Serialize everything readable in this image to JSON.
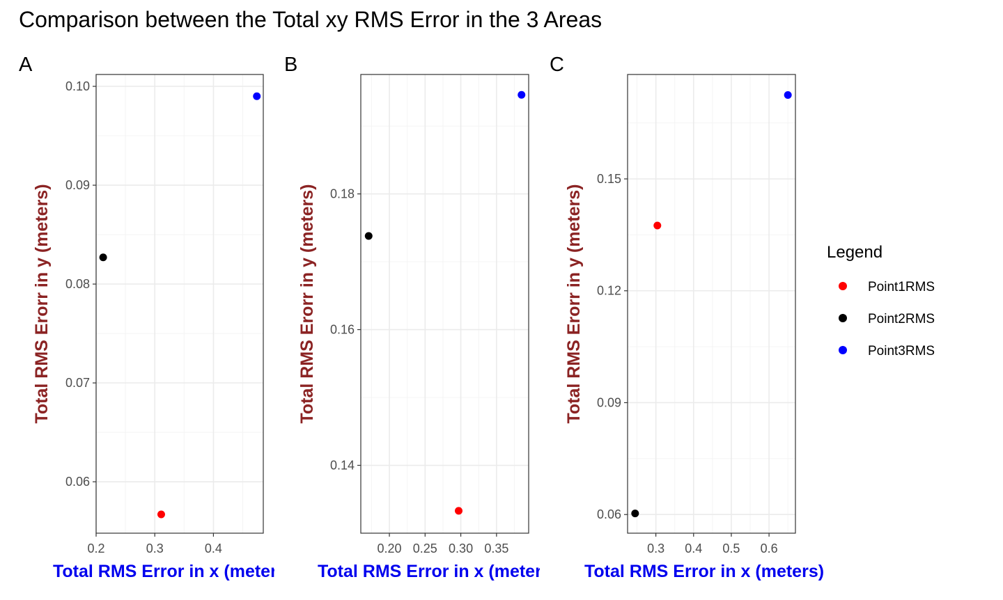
{
  "title": "Comparison between the Total xy RMS Error in the 3 Areas",
  "colors": {
    "xlabel": "#0000ee",
    "ylabel": "#8b2323",
    "grid_major": "#ebebeb",
    "grid_minor": "#f4f4f4",
    "frame": "#333333"
  },
  "legend": {
    "title": "Legend",
    "placement": "right",
    "items": [
      {
        "label": "Point1RMS",
        "color": "#ff0000"
      },
      {
        "label": "Point2RMS",
        "color": "#000000"
      },
      {
        "label": "Point3RMS",
        "color": "#0000ff"
      }
    ]
  },
  "chart_data": [
    {
      "type": "scatter",
      "tag": "A",
      "xlabel": "Total RMS Error in x (meters)",
      "ylabel": "Total RMS Erorr in y (meters)",
      "xlim": [
        0.2,
        0.485
      ],
      "ylim": [
        0.0548,
        0.1012
      ],
      "xticks": [
        0.2,
        0.3,
        0.4
      ],
      "xtick_labels": [
        "0.2",
        "0.3",
        "0.4"
      ],
      "yticks": [
        0.06,
        0.07,
        0.08,
        0.09,
        0.1
      ],
      "ytick_labels": [
        "0.06",
        "0.07",
        "0.08",
        "0.09",
        "0.10"
      ],
      "grid": true,
      "points": [
        {
          "series": "Point1RMS",
          "x": 0.311,
          "y": 0.0567
        },
        {
          "series": "Point2RMS",
          "x": 0.212,
          "y": 0.0827
        },
        {
          "series": "Point3RMS",
          "x": 0.474,
          "y": 0.099
        }
      ]
    },
    {
      "type": "scatter",
      "tag": "B",
      "xlabel": "Total RMS Error in x (meters)",
      "ylabel": "Total RMS Erorr in y (meters)",
      "xlim": [
        0.16,
        0.395
      ],
      "ylim": [
        0.13,
        0.1976
      ],
      "xticks": [
        0.2,
        0.25,
        0.3,
        0.35
      ],
      "xtick_labels": [
        "0.20",
        "0.25",
        "0.30",
        "0.35"
      ],
      "yticks": [
        0.14,
        0.16,
        0.18
      ],
      "ytick_labels": [
        "0.14",
        "0.16",
        "0.18"
      ],
      "grid": true,
      "points": [
        {
          "series": "Point1RMS",
          "x": 0.297,
          "y": 0.1333
        },
        {
          "series": "Point2RMS",
          "x": 0.171,
          "y": 0.1738
        },
        {
          "series": "Point3RMS",
          "x": 0.385,
          "y": 0.1946
        }
      ]
    },
    {
      "type": "scatter",
      "tag": "C",
      "xlabel": "Total RMS Error in x (meters)",
      "ylabel": "Total RMS Erorr in y (meters)",
      "xlim": [
        0.225,
        0.67
      ],
      "ylim": [
        0.055,
        0.178
      ],
      "xticks": [
        0.3,
        0.4,
        0.5,
        0.6
      ],
      "xtick_labels": [
        "0.3",
        "0.4",
        "0.5",
        "0.6"
      ],
      "yticks": [
        0.06,
        0.09,
        0.12,
        0.15
      ],
      "ytick_labels": [
        "0.06",
        "0.09",
        "0.12",
        "0.15"
      ],
      "grid": true,
      "points": [
        {
          "series": "Point1RMS",
          "x": 0.304,
          "y": 0.1375
        },
        {
          "series": "Point2RMS",
          "x": 0.245,
          "y": 0.0603
        },
        {
          "series": "Point3RMS",
          "x": 0.65,
          "y": 0.1725
        }
      ]
    }
  ]
}
